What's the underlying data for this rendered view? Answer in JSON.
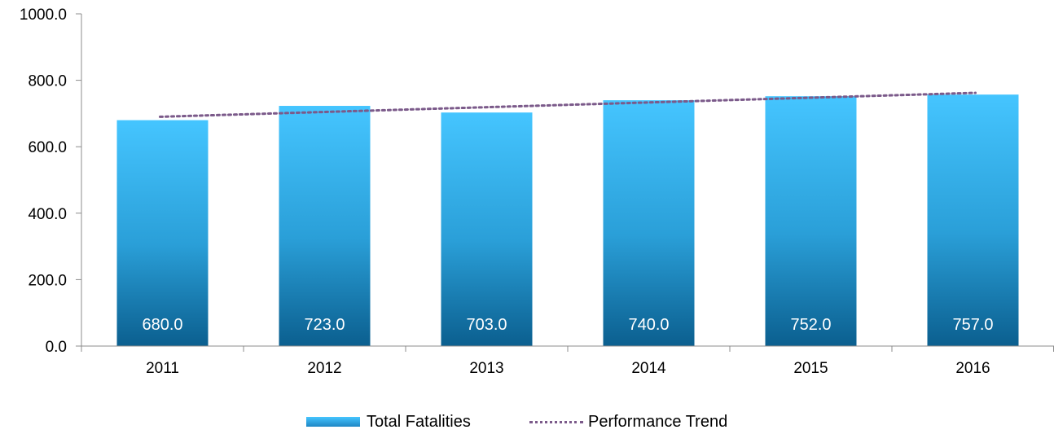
{
  "chart_data": {
    "type": "bar",
    "categories": [
      "2011",
      "2012",
      "2013",
      "2014",
      "2015",
      "2016"
    ],
    "series": [
      {
        "name": "Total Fatalities",
        "type": "bar",
        "values": [
          680.0,
          723.0,
          703.0,
          740.0,
          752.0,
          757.0
        ],
        "labels": [
          "680.0",
          "723.0",
          "703.0",
          "740.0",
          "752.0",
          "757.0"
        ],
        "color_top": "#45c5ff",
        "color_bottom": "#0b5f8f"
      },
      {
        "name": "Performance Trend",
        "type": "line",
        "style": "dotted",
        "values": [
          690.4,
          704.7,
          719.0,
          733.3,
          747.6,
          761.9
        ],
        "color": "#7b5a8a"
      }
    ],
    "yticks": [
      "0.0",
      "200.0",
      "400.0",
      "600.0",
      "800.0",
      "1000.0"
    ],
    "ylim": [
      0,
      1000
    ],
    "grid": false,
    "legend": "bottom"
  },
  "legend": {
    "bar_label": "Total Fatalities",
    "line_label": "Performance Trend"
  }
}
